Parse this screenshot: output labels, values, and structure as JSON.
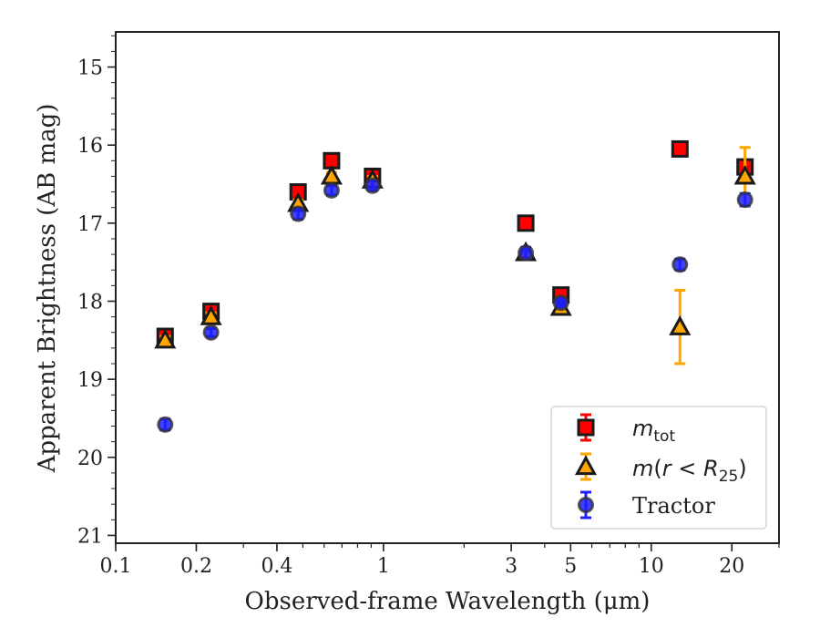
{
  "chart_data": {
    "type": "scatter",
    "xlabel": "Observed-frame Wavelength (μm)",
    "ylabel": "Apparent Brightness (AB mag)",
    "x_scale": "log",
    "xlim": [
      0.1,
      30
    ],
    "ylim": [
      21.1,
      14.55
    ],
    "y_inverted": true,
    "x_ticks": [
      0.1,
      0.2,
      0.4,
      1,
      3,
      5,
      10,
      20
    ],
    "x_tick_labels": [
      "0.1",
      "0.2",
      "0.4",
      "1",
      "3",
      "5",
      "10",
      "20"
    ],
    "y_ticks": [
      15,
      16,
      17,
      18,
      19,
      20,
      21
    ],
    "y_tick_labels": [
      "15",
      "16",
      "17",
      "18",
      "19",
      "20",
      "21"
    ],
    "grid": false,
    "legend_position": "bottom-right",
    "series": [
      {
        "name": "m_tot",
        "marker": "square",
        "color": "#ff0000",
        "edge_color": "#1a1a1a",
        "error_color": "#ff0000",
        "points": [
          {
            "x": 0.153,
            "y": 18.45,
            "err": 0.05
          },
          {
            "x": 0.227,
            "y": 18.13,
            "err": 0.05
          },
          {
            "x": 0.48,
            "y": 16.6,
            "err": 0.05
          },
          {
            "x": 0.64,
            "y": 16.2,
            "err": 0.05
          },
          {
            "x": 0.91,
            "y": 16.4,
            "err": 0.05
          },
          {
            "x": 3.4,
            "y": 17.0,
            "err": 0.05
          },
          {
            "x": 4.6,
            "y": 17.92,
            "err": 0.06
          },
          {
            "x": 12.8,
            "y": 16.05,
            "err": 0.05
          },
          {
            "x": 22.4,
            "y": 16.28,
            "err": 0.05
          }
        ]
      },
      {
        "name": "m(r < R25)",
        "marker": "triangle",
        "color": "#ffa500",
        "edge_color": "#1a1a1a",
        "error_color": "#ffa500",
        "points": [
          {
            "x": 0.153,
            "y": 18.5,
            "err": 0.05
          },
          {
            "x": 0.227,
            "y": 18.2,
            "err": 0.05
          },
          {
            "x": 0.48,
            "y": 16.75,
            "err": 0.05
          },
          {
            "x": 0.64,
            "y": 16.4,
            "err": 0.05
          },
          {
            "x": 0.91,
            "y": 16.45,
            "err": 0.05
          },
          {
            "x": 3.4,
            "y": 17.38,
            "err": 0.05
          },
          {
            "x": 4.6,
            "y": 18.08,
            "err": 0.05
          },
          {
            "x": 12.8,
            "y": 18.33,
            "err": 0.47
          },
          {
            "x": 22.4,
            "y": 16.4,
            "err": 0.37
          }
        ]
      },
      {
        "name": "Tractor",
        "marker": "circle",
        "color": "#1f1fff",
        "edge_color": "#333333",
        "error_color": "#1f1fff",
        "points": [
          {
            "x": 0.153,
            "y": 19.58,
            "err": 0.07
          },
          {
            "x": 0.227,
            "y": 18.4,
            "err": 0.05
          },
          {
            "x": 0.48,
            "y": 16.88,
            "err": 0.07
          },
          {
            "x": 0.64,
            "y": 16.58,
            "err": 0.06
          },
          {
            "x": 0.91,
            "y": 16.52,
            "err": 0.06
          },
          {
            "x": 3.4,
            "y": 17.38,
            "err": 0.07
          },
          {
            "x": 4.6,
            "y": 18.02,
            "err": 0.05
          },
          {
            "x": 12.8,
            "y": 17.53,
            "err": 0.07
          },
          {
            "x": 22.4,
            "y": 16.7,
            "err": 0.08
          }
        ]
      }
    ]
  }
}
